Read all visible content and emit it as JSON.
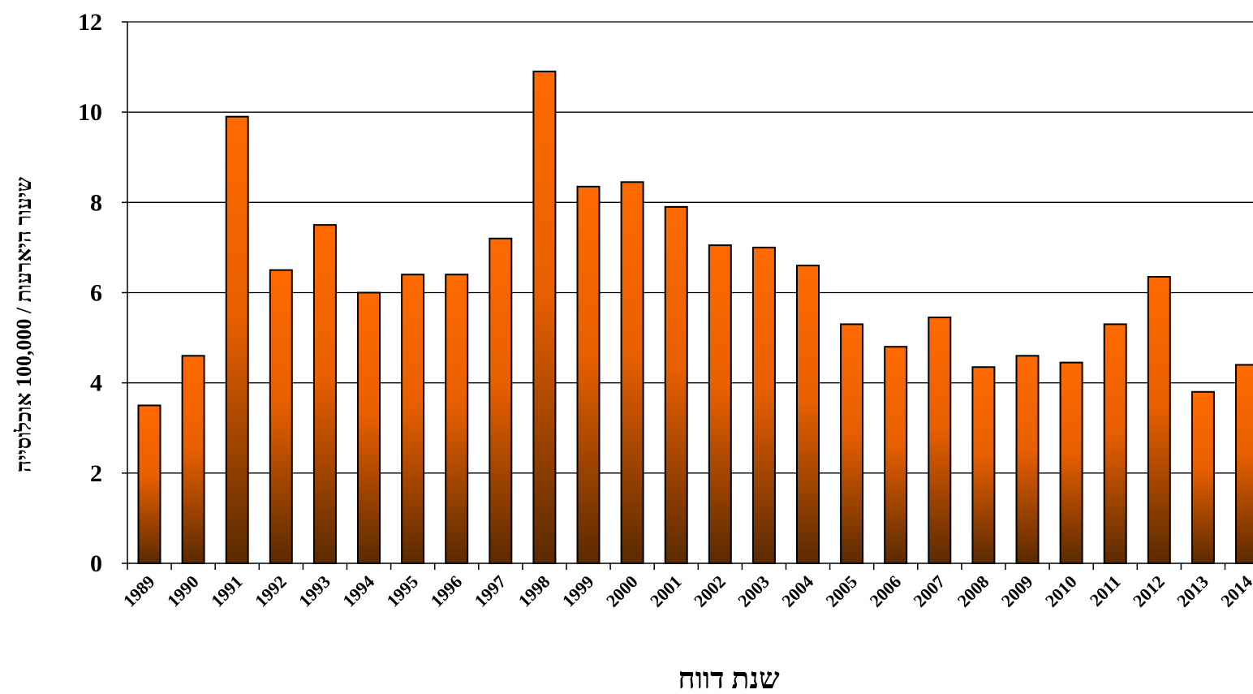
{
  "chart_data": {
    "type": "bar",
    "title": "",
    "xlabel": "שנת דווח",
    "ylabel": "שיעור היארעות / 100,000 אוכלוסייה",
    "categories": [
      "1989",
      "1990",
      "1991",
      "1992",
      "1993",
      "1994",
      "1995",
      "1996",
      "1997",
      "1998",
      "1999",
      "2000",
      "2001",
      "2002",
      "2003",
      "2004",
      "2005",
      "2006",
      "2007",
      "2008",
      "2009",
      "2010",
      "2011",
      "2012",
      "2013",
      "2014"
    ],
    "values": [
      3.5,
      4.6,
      9.9,
      6.5,
      7.5,
      6.0,
      6.4,
      6.4,
      7.2,
      10.9,
      8.35,
      8.45,
      7.9,
      7.05,
      7.0,
      6.6,
      5.3,
      4.8,
      5.45,
      4.35,
      4.6,
      4.45,
      5.3,
      6.35,
      3.8,
      4.4
    ],
    "ylim": [
      0,
      12
    ],
    "yticks": [
      0,
      2,
      4,
      6,
      8,
      10,
      12
    ],
    "grid": true,
    "colors": {
      "bar_top": "#ff6a00",
      "bar_bottom": "#5a2a00",
      "bar_stroke": "#000000",
      "grid": "#000000"
    }
  }
}
